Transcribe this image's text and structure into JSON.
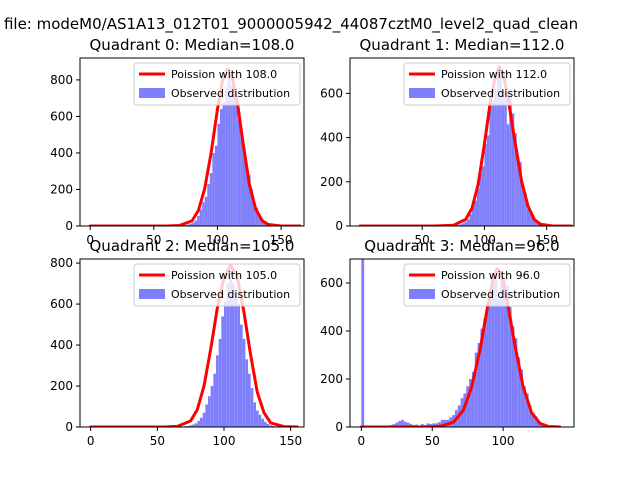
{
  "figure": {
    "suptitle": "a file: modeM0/AS1A13_012T01_9000005942_44087cztM0_level2_quad_clean"
  },
  "colors": {
    "bars": "#7f7ffb",
    "curve": "#ff0000",
    "axes": "#000000"
  },
  "chart_data": [
    {
      "type": "bar",
      "title": "Quadrant 0: Median=108.0",
      "xlabel": "",
      "ylabel": "",
      "xlim": [
        -8,
        168
      ],
      "ylim": [
        0,
        920
      ],
      "xticks": [
        0,
        50,
        100,
        150
      ],
      "yticks": [
        0,
        200,
        400,
        600,
        800
      ],
      "legend_position": "top-right",
      "series": [
        {
          "name": "Poission with 108.0",
          "kind": "line",
          "mean": 108.0,
          "x": [
            0,
            60,
            70,
            80,
            85,
            90,
            95,
            100,
            104,
            108,
            112,
            116,
            120,
            125,
            130,
            135,
            140,
            150,
            165
          ],
          "y": [
            0,
            0,
            3,
            28,
            85,
            205,
            400,
            640,
            795,
            860,
            800,
            660,
            460,
            230,
            95,
            30,
            8,
            0,
            0
          ]
        },
        {
          "name": "Observed distribution",
          "kind": "hist",
          "bins": [
            [
              70,
              72,
              2
            ],
            [
              72,
              74,
              4
            ],
            [
              74,
              76,
              5
            ],
            [
              76,
              78,
              8
            ],
            [
              78,
              80,
              12
            ],
            [
              80,
              82,
              18
            ],
            [
              82,
              84,
              30
            ],
            [
              84,
              86,
              55
            ],
            [
              86,
              88,
              90
            ],
            [
              88,
              90,
              130
            ],
            [
              90,
              92,
              160
            ],
            [
              92,
              94,
              230
            ],
            [
              94,
              96,
              290
            ],
            [
              96,
              98,
              400
            ],
            [
              98,
              100,
              440
            ],
            [
              100,
              102,
              560
            ],
            [
              102,
              104,
              640
            ],
            [
              104,
              106,
              680
            ],
            [
              106,
              108,
              760
            ],
            [
              108,
              110,
              820
            ],
            [
              110,
              112,
              770
            ],
            [
              112,
              114,
              720
            ],
            [
              114,
              116,
              680
            ],
            [
              116,
              118,
              580
            ],
            [
              118,
              120,
              510
            ],
            [
              120,
              122,
              430
            ],
            [
              122,
              124,
              320
            ],
            [
              124,
              126,
              280
            ],
            [
              126,
              128,
              200
            ],
            [
              128,
              130,
              130
            ],
            [
              130,
              132,
              100
            ],
            [
              132,
              134,
              50
            ],
            [
              134,
              136,
              40
            ],
            [
              136,
              138,
              20
            ],
            [
              138,
              140,
              15
            ],
            [
              140,
              142,
              8
            ],
            [
              142,
              144,
              5
            ],
            [
              144,
              146,
              3
            ]
          ]
        }
      ]
    },
    {
      "type": "bar",
      "title": "Quadrant 1: Median=112.0",
      "xlabel": "",
      "ylabel": "",
      "xlim": [
        -8,
        172
      ],
      "ylim": [
        0,
        760
      ],
      "xticks": [
        50,
        100,
        150
      ],
      "yticks": [
        0,
        200,
        400,
        600
      ],
      "legend_position": "top-right",
      "series": [
        {
          "name": "Poission with 112.0",
          "kind": "line",
          "mean": 112.0,
          "x": [
            0,
            60,
            75,
            85,
            90,
            95,
            100,
            105,
            109,
            112,
            115,
            119,
            124,
            130,
            135,
            140,
            145,
            155,
            170
          ],
          "y": [
            0,
            0,
            3,
            30,
            80,
            190,
            370,
            570,
            680,
            720,
            690,
            580,
            400,
            200,
            90,
            30,
            8,
            0,
            0
          ]
        },
        {
          "name": "Observed distribution",
          "kind": "hist",
          "bins": [
            [
              76,
              78,
              3
            ],
            [
              78,
              80,
              5
            ],
            [
              80,
              82,
              8
            ],
            [
              82,
              84,
              12
            ],
            [
              84,
              86,
              20
            ],
            [
              86,
              88,
              30
            ],
            [
              88,
              90,
              55
            ],
            [
              90,
              92,
              90
            ],
            [
              92,
              94,
              115
            ],
            [
              94,
              96,
              170
            ],
            [
              96,
              98,
              240
            ],
            [
              98,
              100,
              270
            ],
            [
              100,
              102,
              370
            ],
            [
              102,
              104,
              410
            ],
            [
              104,
              106,
              540
            ],
            [
              106,
              108,
              570
            ],
            [
              108,
              110,
              620
            ],
            [
              110,
              112,
              680
            ],
            [
              112,
              114,
              700
            ],
            [
              114,
              116,
              610
            ],
            [
              116,
              118,
              580
            ],
            [
              118,
              120,
              460
            ],
            [
              120,
              122,
              620
            ],
            [
              122,
              124,
              510
            ],
            [
              124,
              126,
              420
            ],
            [
              126,
              128,
              310
            ],
            [
              128,
              130,
              290
            ],
            [
              130,
              132,
              180
            ],
            [
              132,
              134,
              150
            ],
            [
              134,
              136,
              80
            ],
            [
              136,
              138,
              60
            ],
            [
              138,
              140,
              40
            ],
            [
              140,
              142,
              25
            ],
            [
              142,
              144,
              15
            ],
            [
              144,
              146,
              8
            ],
            [
              146,
              148,
              5
            ]
          ]
        }
      ]
    },
    {
      "type": "bar",
      "title": "Quadrant 2: Median=105.0",
      "xlabel": "",
      "ylabel": "",
      "xlim": [
        -8,
        160
      ],
      "ylim": [
        0,
        820
      ],
      "xticks": [
        0,
        50,
        100,
        150
      ],
      "yticks": [
        0,
        200,
        400,
        600,
        800
      ],
      "legend_position": "top-right",
      "series": [
        {
          "name": "Poission with 105.0",
          "kind": "line",
          "mean": 105.0,
          "x": [
            0,
            55,
            65,
            75,
            80,
            85,
            90,
            95,
            100,
            105,
            110,
            115,
            120,
            125,
            130,
            135,
            145,
            155
          ],
          "y": [
            0,
            0,
            3,
            30,
            85,
            200,
            380,
            580,
            730,
            790,
            730,
            560,
            350,
            170,
            70,
            20,
            2,
            0
          ]
        },
        {
          "name": "Observed distribution",
          "kind": "hist",
          "bins": [
            [
              68,
              70,
              2
            ],
            [
              70,
              72,
              4
            ],
            [
              72,
              74,
              5
            ],
            [
              74,
              76,
              8
            ],
            [
              76,
              78,
              12
            ],
            [
              78,
              80,
              18
            ],
            [
              80,
              82,
              30
            ],
            [
              82,
              84,
              45
            ],
            [
              84,
              86,
              70
            ],
            [
              86,
              88,
              110
            ],
            [
              88,
              90,
              150
            ],
            [
              90,
              92,
              200
            ],
            [
              92,
              94,
              260
            ],
            [
              94,
              96,
              350
            ],
            [
              96,
              98,
              430
            ],
            [
              98,
              100,
              540
            ],
            [
              100,
              102,
              610
            ],
            [
              102,
              104,
              700
            ],
            [
              104,
              106,
              770
            ],
            [
              106,
              108,
              700
            ],
            [
              108,
              110,
              650
            ],
            [
              110,
              112,
              600
            ],
            [
              112,
              114,
              500
            ],
            [
              114,
              116,
              430
            ],
            [
              116,
              118,
              330
            ],
            [
              118,
              120,
              260
            ],
            [
              120,
              122,
              190
            ],
            [
              122,
              124,
              120
            ],
            [
              124,
              126,
              80
            ],
            [
              126,
              128,
              60
            ],
            [
              128,
              130,
              40
            ],
            [
              130,
              132,
              25
            ],
            [
              132,
              134,
              15
            ],
            [
              134,
              136,
              8
            ],
            [
              136,
              138,
              5
            ]
          ]
        }
      ]
    },
    {
      "type": "bar",
      "title": "Quadrant 3: Median=96.0",
      "xlabel": "",
      "ylabel": "",
      "xlim": [
        -8,
        150
      ],
      "ylim": [
        0,
        700
      ],
      "xticks": [
        0,
        50,
        100
      ],
      "yticks": [
        0,
        200,
        400,
        600
      ],
      "legend_position": "top-right",
      "series": [
        {
          "name": "Poission with 96.0",
          "kind": "line",
          "mean": 96.0,
          "x": [
            0,
            45,
            55,
            65,
            72,
            78,
            84,
            89,
            93,
            96,
            99,
            103,
            108,
            114,
            120,
            126,
            132,
            140
          ],
          "y": [
            0,
            0,
            2,
            20,
            70,
            170,
            330,
            500,
            620,
            660,
            630,
            520,
            350,
            170,
            60,
            15,
            2,
            0
          ]
        },
        {
          "name": "Observed distribution",
          "kind": "hist",
          "bins": [
            [
              0,
              2,
              700
            ],
            [
              14,
              16,
              3
            ],
            [
              18,
              20,
              5
            ],
            [
              20,
              22,
              8
            ],
            [
              22,
              24,
              12
            ],
            [
              24,
              26,
              18
            ],
            [
              26,
              28,
              25
            ],
            [
              28,
              30,
              30
            ],
            [
              30,
              32,
              22
            ],
            [
              32,
              34,
              18
            ],
            [
              34,
              36,
              12
            ],
            [
              36,
              38,
              8
            ],
            [
              38,
              40,
              10
            ],
            [
              40,
              42,
              6
            ],
            [
              42,
              44,
              12
            ],
            [
              44,
              46,
              8
            ],
            [
              46,
              48,
              15
            ],
            [
              48,
              50,
              12
            ],
            [
              50,
              52,
              15
            ],
            [
              52,
              54,
              15
            ],
            [
              54,
              56,
              20
            ],
            [
              56,
              58,
              30
            ],
            [
              58,
              60,
              30
            ],
            [
              60,
              62,
              30
            ],
            [
              62,
              64,
              40
            ],
            [
              64,
              66,
              50
            ],
            [
              66,
              68,
              70
            ],
            [
              68,
              70,
              90
            ],
            [
              70,
              72,
              120
            ],
            [
              72,
              74,
              140
            ],
            [
              74,
              76,
              170
            ],
            [
              76,
              78,
              200
            ],
            [
              78,
              80,
              230
            ],
            [
              80,
              82,
              310
            ],
            [
              82,
              84,
              350
            ],
            [
              84,
              86,
              410
            ],
            [
              86,
              88,
              450
            ],
            [
              88,
              90,
              520
            ],
            [
              90,
              92,
              570
            ],
            [
              92,
              94,
              600
            ],
            [
              94,
              96,
              630
            ],
            [
              96,
              98,
              530
            ],
            [
              98,
              100,
              640
            ],
            [
              100,
              102,
              620
            ],
            [
              102,
              104,
              590
            ],
            [
              104,
              106,
              500
            ],
            [
              106,
              108,
              420
            ],
            [
              108,
              110,
              370
            ],
            [
              110,
              112,
              290
            ],
            [
              112,
              114,
              240
            ],
            [
              114,
              116,
              170
            ],
            [
              116,
              118,
              140
            ],
            [
              118,
              120,
              90
            ],
            [
              120,
              122,
              60
            ],
            [
              122,
              124,
              45
            ],
            [
              124,
              126,
              25
            ],
            [
              126,
              128,
              15
            ],
            [
              128,
              130,
              8
            ],
            [
              130,
              132,
              5
            ]
          ]
        }
      ]
    }
  ]
}
